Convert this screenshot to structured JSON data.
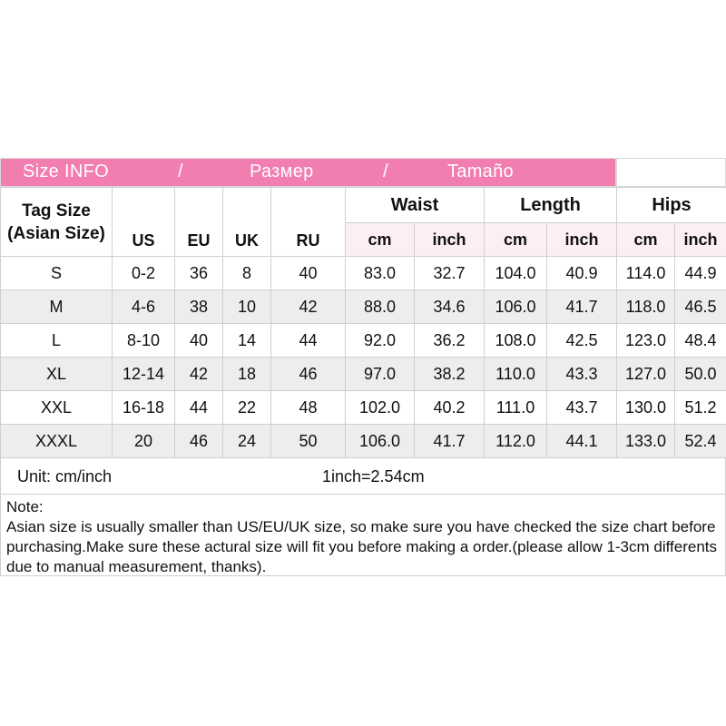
{
  "banner": {
    "part1": "Size INFO",
    "sep1": "/",
    "part2": "Размер",
    "sep2": "/",
    "part3": "Tamaño"
  },
  "header": {
    "tag_size_line1": "Tag Size",
    "tag_size_line2": "(Asian Size)",
    "us": "US",
    "eu": "EU",
    "uk": "UK",
    "ru": "RU",
    "waist": "Waist",
    "length": "Length",
    "hips": "Hips",
    "waist_cm": "cm",
    "waist_inch": "inch",
    "length_cm": "cm",
    "length_inch": "inch",
    "hips_cm": "cm",
    "hips_inch": "inch"
  },
  "rows": [
    [
      "S",
      "0-2",
      "36",
      "8",
      "40",
      "83.0",
      "32.7",
      "104.0",
      "40.9",
      "114.0",
      "44.9"
    ],
    [
      "M",
      "4-6",
      "38",
      "10",
      "42",
      "88.0",
      "34.6",
      "106.0",
      "41.7",
      "118.0",
      "46.5"
    ],
    [
      "L",
      "8-10",
      "40",
      "14",
      "44",
      "92.0",
      "36.2",
      "108.0",
      "42.5",
      "123.0",
      "48.4"
    ],
    [
      "XL",
      "12-14",
      "42",
      "18",
      "46",
      "97.0",
      "38.2",
      "110.0",
      "43.3",
      "127.0",
      "50.0"
    ],
    [
      "XXL",
      "16-18",
      "44",
      "22",
      "48",
      "102.0",
      "40.2",
      "111.0",
      "43.7",
      "130.0",
      "51.2"
    ],
    [
      "XXXL",
      "20",
      "46",
      "24",
      "50",
      "106.0",
      "41.7",
      "112.0",
      "44.1",
      "133.0",
      "52.4"
    ]
  ],
  "unit": {
    "label": "Unit: cm/inch",
    "conversion": "1inch=2.54cm"
  },
  "note": {
    "title": "Note:",
    "body": "Asian size is usually smaller than US/EU/UK size, so make sure you have checked the size chart before purchasing.Make sure these actural size will fit you before making a order.(please allow 1-3cm differents due to manual measurement, thanks)."
  },
  "colors": {
    "banner_pink": "#f27db0",
    "header_tint": "#fdeef2",
    "row_stripe": "#ededed"
  }
}
